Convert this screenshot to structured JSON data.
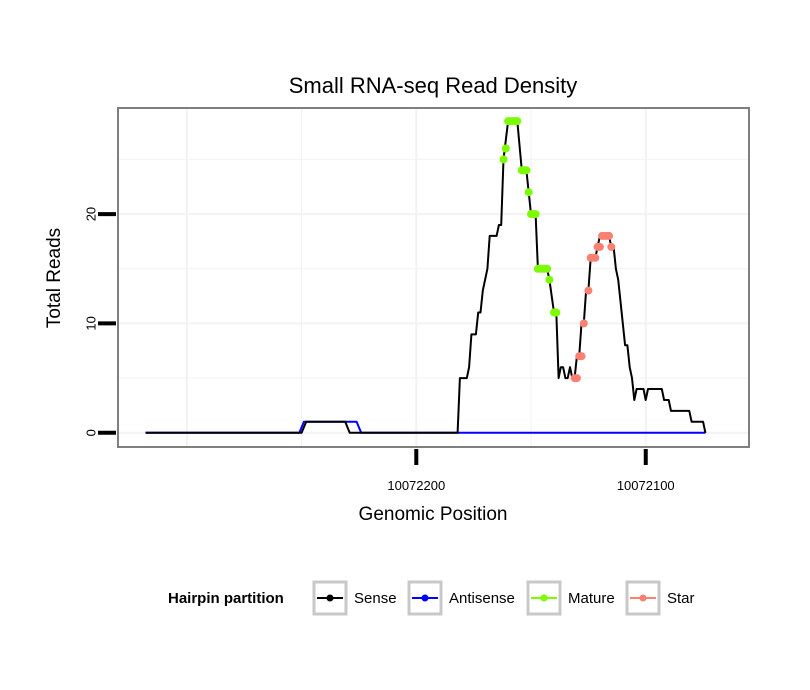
{
  "chart_data": {
    "type": "line",
    "title": "Small RNA-seq Read Density",
    "xlabel": "Genomic Position",
    "ylabel": "Total Reads",
    "x_reversed": true,
    "xlim": [
      10072330,
      10072055
    ],
    "ylim": [
      -1.3,
      29.7
    ],
    "xticks": [
      {
        "value": 10072200,
        "label": "10072200"
      },
      {
        "value": 10072100,
        "label": "10072100"
      }
    ],
    "yticks": [
      {
        "value": 0,
        "label": "0"
      },
      {
        "value": 10,
        "label": "10"
      },
      {
        "value": 20,
        "label": "20"
      }
    ],
    "legend": {
      "title": "Hairpin partition",
      "position": "bottom",
      "entries": [
        {
          "name": "Sense",
          "color": "#000000"
        },
        {
          "name": "Antisense",
          "color": "#0000ff"
        },
        {
          "name": "Mature",
          "color": "#7cfc00"
        },
        {
          "name": "Star",
          "color": "#fa8072"
        }
      ]
    },
    "series": [
      {
        "name": "Sense",
        "color": "#000000",
        "points": [
          [
            10072318,
            0
          ],
          [
            10072250,
            0
          ],
          [
            10072248,
            1
          ],
          [
            10072231,
            1
          ],
          [
            10072229,
            0
          ],
          [
            10072182,
            0
          ],
          [
            10072181,
            5
          ],
          [
            10072178,
            5
          ],
          [
            10072177,
            6
          ],
          [
            10072176,
            9
          ],
          [
            10072174,
            9
          ],
          [
            10072173,
            11
          ],
          [
            10072172,
            11
          ],
          [
            10072171,
            13
          ],
          [
            10072169,
            15
          ],
          [
            10072168,
            18
          ],
          [
            10072165,
            18
          ],
          [
            10072164,
            19
          ],
          [
            10072163,
            19
          ],
          [
            10072162,
            25
          ],
          [
            10072160,
            28.5
          ],
          [
            10072156,
            28.5
          ],
          [
            10072154,
            24
          ],
          [
            10072152,
            24
          ],
          [
            10072151,
            22
          ],
          [
            10072150,
            20
          ],
          [
            10072148,
            20
          ],
          [
            10072147,
            15
          ],
          [
            10072143,
            15
          ],
          [
            10072142,
            14
          ],
          [
            10072140,
            11
          ],
          [
            10072139,
            11
          ],
          [
            10072138,
            5
          ],
          [
            10072137,
            6
          ],
          [
            10072136,
            6
          ],
          [
            10072135,
            5
          ],
          [
            10072134,
            5
          ],
          [
            10072133,
            6
          ],
          [
            10072132,
            5
          ],
          [
            10072131,
            5
          ],
          [
            10072130,
            7
          ],
          [
            10072129,
            7
          ],
          [
            10072128,
            10
          ],
          [
            10072127,
            10
          ],
          [
            10072126,
            13
          ],
          [
            10072125,
            13
          ],
          [
            10072124,
            16
          ],
          [
            10072122,
            16
          ],
          [
            10072121,
            17
          ],
          [
            10072120,
            18
          ],
          [
            10072116,
            18
          ],
          [
            10072115,
            17
          ],
          [
            10072114,
            17
          ],
          [
            10072113,
            15
          ],
          [
            10072112,
            14
          ],
          [
            10072110,
            10
          ],
          [
            10072109,
            8
          ],
          [
            10072108,
            8
          ],
          [
            10072107,
            6
          ],
          [
            10072106,
            5
          ],
          [
            10072105,
            3
          ],
          [
            10072104,
            4
          ],
          [
            10072101,
            4
          ],
          [
            10072100,
            3
          ],
          [
            10072099,
            4
          ],
          [
            10072093,
            4
          ],
          [
            10072092,
            3
          ],
          [
            10072090,
            3
          ],
          [
            10072089,
            2
          ],
          [
            10072081,
            2
          ],
          [
            10072080,
            1
          ],
          [
            10072075,
            1
          ],
          [
            10072074,
            0
          ]
        ]
      },
      {
        "name": "Antisense",
        "color": "#0000ff",
        "points": [
          [
            10072318,
            0
          ],
          [
            10072251,
            0
          ],
          [
            10072249,
            1
          ],
          [
            10072226,
            1
          ],
          [
            10072224,
            0
          ],
          [
            10072074,
            0
          ]
        ]
      },
      {
        "name": "Mature",
        "color": "#7cfc00",
        "points": [
          [
            10072162,
            25
          ],
          [
            10072161,
            26
          ],
          [
            10072160,
            28.5
          ],
          [
            10072159,
            28.5
          ],
          [
            10072158,
            28.5
          ],
          [
            10072157,
            28.5
          ],
          [
            10072156,
            28.5
          ],
          [
            10072154,
            24
          ],
          [
            10072153,
            24
          ],
          [
            10072152,
            24
          ],
          [
            10072151,
            22
          ],
          [
            10072150,
            20
          ],
          [
            10072149,
            20
          ],
          [
            10072148,
            20
          ],
          [
            10072147,
            15
          ],
          [
            10072146,
            15
          ],
          [
            10072145,
            15
          ],
          [
            10072144,
            15
          ],
          [
            10072143,
            15
          ],
          [
            10072142,
            14
          ],
          [
            10072140,
            11
          ],
          [
            10072139,
            11
          ]
        ]
      },
      {
        "name": "Star",
        "color": "#fa8072",
        "points": [
          [
            10072131,
            5
          ],
          [
            10072130,
            5
          ],
          [
            10072129,
            7
          ],
          [
            10072128,
            7
          ],
          [
            10072127,
            10
          ],
          [
            10072125,
            13
          ],
          [
            10072124,
            16
          ],
          [
            10072123,
            16
          ],
          [
            10072122,
            16
          ],
          [
            10072121,
            17
          ],
          [
            10072120,
            17
          ],
          [
            10072119,
            18
          ],
          [
            10072118,
            18
          ],
          [
            10072117,
            18
          ],
          [
            10072116,
            18
          ],
          [
            10072115,
            17
          ]
        ]
      }
    ]
  }
}
